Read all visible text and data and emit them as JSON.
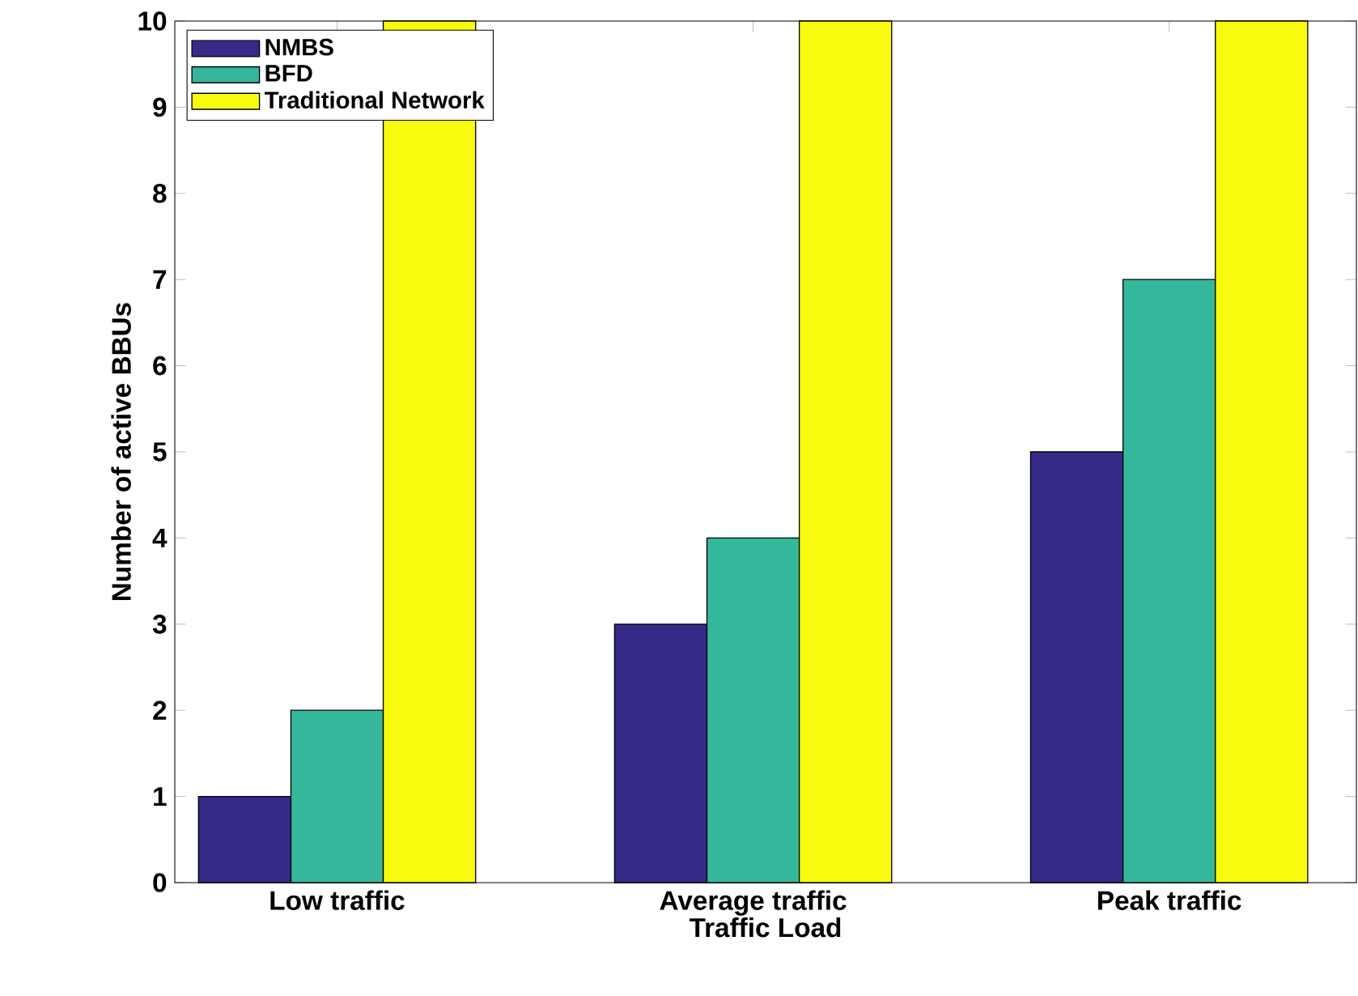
{
  "chart_data": {
    "type": "bar",
    "xlabel": "Traffic Load",
    "ylabel": "Number of active BBUs",
    "categories": [
      "Low traffic",
      "Average traffic",
      "Peak traffic"
    ],
    "series": [
      {
        "name": "NMBS",
        "color": "#352a87",
        "values": [
          1,
          3,
          5
        ]
      },
      {
        "name": "BFD",
        "color": "#35b79b",
        "values": [
          2,
          4,
          7
        ]
      },
      {
        "name": "Traditional Network",
        "color": "#f9fb0e",
        "values": [
          10,
          10,
          10
        ]
      }
    ],
    "ylim": [
      0,
      10
    ],
    "yticks": [
      0,
      1,
      2,
      3,
      4,
      5,
      6,
      7,
      8,
      9,
      10
    ],
    "legend": "top left",
    "grid": false
  }
}
